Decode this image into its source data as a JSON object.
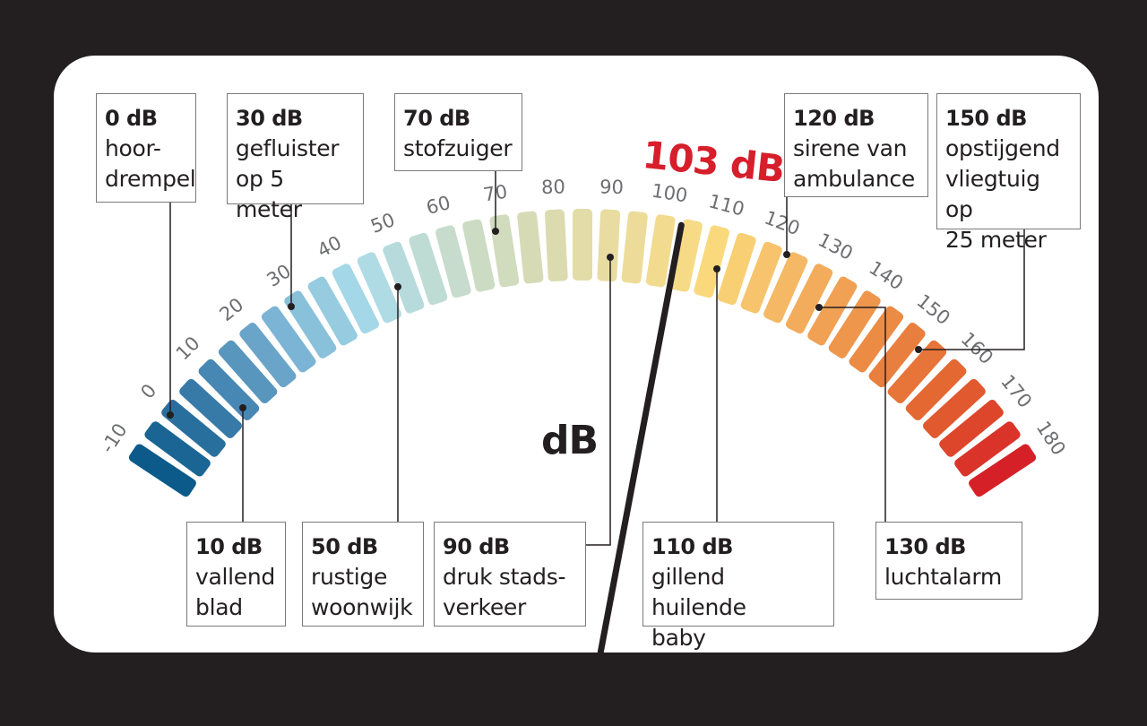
{
  "reading": {
    "value_label": "103 dB",
    "value": 103,
    "color": "#d61f2b"
  },
  "unit_label": "dB",
  "scale": {
    "min": -10,
    "max": 180,
    "step": 5,
    "tick_labels": [
      "-10",
      "0",
      "10",
      "20",
      "30",
      "40",
      "50",
      "60",
      "70",
      "80",
      "90",
      "100",
      "110",
      "120",
      "130",
      "140",
      "150",
      "160",
      "170",
      "180"
    ]
  },
  "colors": {
    "background": "#231f20",
    "panel": "#ffffff",
    "gradient_stops": [
      "#0b5a8a",
      "#3e7fad",
      "#7ab3d3",
      "#a9dbe9",
      "#c6dccd",
      "#d7dbb4",
      "#ecdc9c",
      "#fbd97a",
      "#f4b05f",
      "#eb8a43",
      "#e3622f",
      "#d62027"
    ]
  },
  "annotations": [
    {
      "value": "0 dB",
      "desc": "hoor-\ndrempel"
    },
    {
      "value": "30 dB",
      "desc": "gefluister\nop 5 meter"
    },
    {
      "value": "70 dB",
      "desc": "stofzuiger"
    },
    {
      "value": "120 dB",
      "desc": "sirene van\nambulance"
    },
    {
      "value": "150 dB",
      "desc": "opstijgend\nvliegtuig op\n25 meter"
    },
    {
      "value": "10 dB",
      "desc": "vallend\nblad"
    },
    {
      "value": "50 dB",
      "desc": "rustige\nwoonwijk"
    },
    {
      "value": "90 dB",
      "desc": "druk  stads-\nverkeer"
    },
    {
      "value": "110 dB",
      "desc": "gillend huilende\nbaby"
    },
    {
      "value": "130 dB",
      "desc": "luchtalarm"
    }
  ]
}
